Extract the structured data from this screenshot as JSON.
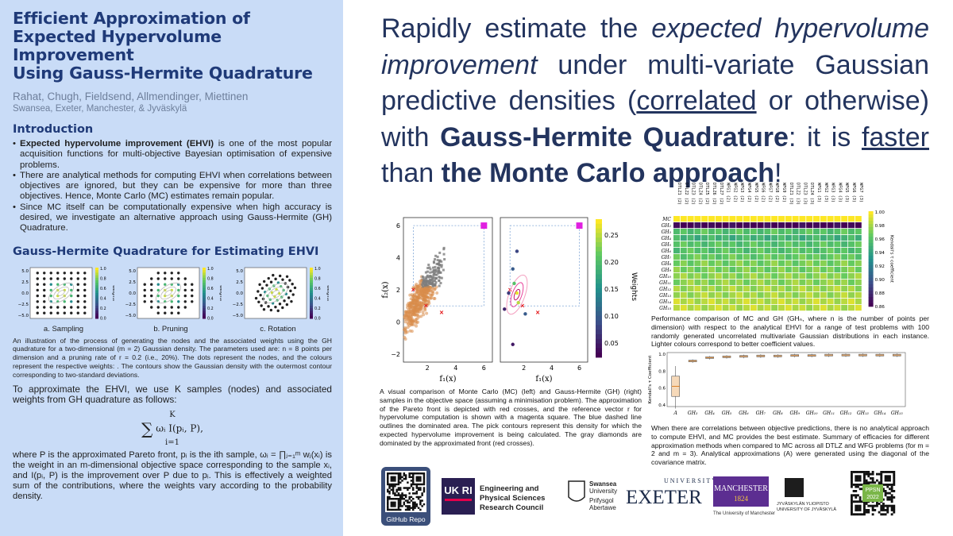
{
  "poster": {
    "title_lines": [
      "Efficient Approximation of",
      "Expected Hypervolume Improvement",
      "Using Gauss-Hermite Quadrature"
    ],
    "authors": "Rahat, Chugh, Fieldsend, Allmendinger, Miettinen",
    "affiliations": "Swansea, Exeter, Manchester, & Jyväskylä"
  },
  "intro": {
    "heading": "Introduction",
    "bullet1_bold": "Expected hypervolume improvement (EHVI)",
    "bullet1_rest": " is one of the most popular acquisition functions for multi-objective Bayesian optimisation of expensive problems.",
    "bullet2": "There are analytical methods for computing EHVI when correlations between objectives are ignored, but they can be expensive for more than three objectives. Hence, Monte Carlo (MC) estimates remain popular.",
    "bullet3": "Since MC itself can be computationally expensive when high accuracy is desired, we investigate an alternative approach using Gauss-Hermite (GH) Quadrature."
  },
  "gh": {
    "heading": "Gauss-Hermite Quadrature for Estimating EHVI",
    "thumb_caps": [
      "a. Sampling",
      "b. Pruning",
      "c. Rotation"
    ],
    "colorbar_label": "Weights",
    "thumb_yticks": [
      "5.0",
      "2.5",
      "0.0",
      "−2.5",
      "−5.0"
    ],
    "thumb_cticks": [
      "1.0",
      "0.8",
      "0.6",
      "0.4",
      "0.2",
      "0.0"
    ],
    "fig_caption": "An illustration of the process of generating the nodes and the associated weights using the GH quadrature for a two-dimensional (m = 2) Gaussian density. The parameters used are: n = 8 points per dimension and a pruning rate of r = 0.2 (i.e., 20%). The dots represent the nodes, and the colours represent the respective weights: . The contours show the Gaussian density with the outermost contour corresponding to two-standard deviations.",
    "para1": "To approximate the EHVI, we use K samples (nodes) and associated weights from GH quadrature as follows:",
    "formula_upper": "K",
    "formula_body": "ωᵢ I(pᵢ, P),",
    "formula_lower": "i=1",
    "para2": "where P is the approximated Pareto front, pᵢ is the ith sample, ωᵢ = ∏ⱼ₌₁ᵐ wⱼ(xᵢ) is the weight in an m-dimensional objective space corresponding to the sample xᵢ, and I(pᵢ, P) is the improvement over P due to pᵢ. This is effectively a weighted sum of the contributions, where the weights vary according to the probability density."
  },
  "headline": {
    "p1": "Rapidly estimate the ",
    "p1_italic": "expected hypervolume improvement",
    "p2": " under multi-variate Gaussian predictive densities (",
    "p2_underline": "correlated",
    "p3": " or otherwise) with ",
    "p3_bold": "Gauss-Hermite Quadrature",
    "p4": ":  it is ",
    "p4_underline": "faster",
    "p5": " than ",
    "p5_bold": "the Monte Carlo approach",
    "p6": "!"
  },
  "scatter": {
    "ylabel": "f₂(x)",
    "xlabel": "f₁(x)",
    "yticks": [
      "6",
      "4",
      "2",
      "0",
      "−2"
    ],
    "xticks": [
      "2",
      "4",
      "6"
    ],
    "colorbar_label": "Weights",
    "cticks": [
      "0.25",
      "0.20",
      "0.15",
      "0.10",
      "0.05"
    ],
    "caption": "A visual comparison of Monte Carlo (MC) (left) and Gauss-Hermite (GH) (right) samples in the objective space (assuming a minimisation problem). The approximation of the Pareto front is depicted with red crosses, and the reference vector r for hypervolume computation is shown with a magenta square. The blue dashed line outlines the dominated area. The pick contours represent this density for which the expected hypervolume improvement is being calculated. The gray diamonds are dominated by the approximated front (red crosses)."
  },
  "heatmap": {
    "rows": [
      "MC",
      "GH₂",
      "GH₃",
      "GH₄",
      "GH₅",
      "GH₆",
      "GH₇",
      "GH₈",
      "GH₉",
      "GH₁₀",
      "GH₁₁",
      "GH₁₂",
      "GH₁₃",
      "GH₁₄",
      "GH₁₅"
    ],
    "cols": [
      "DTLZ1 (2)",
      "DTLZ2 (2)",
      "DTLZ3 (2)",
      "DTLZ4 (2)",
      "DTLZ5 (2)",
      "DTLZ6 (2)",
      "DTLZ7 (2)",
      "WFG1 (2)",
      "WFG2 (2)",
      "WFG3 (2)",
      "WFG4 (2)",
      "WFG5 (2)",
      "WFG6 (2)",
      "WFG7 (2)",
      "WFG8 (2)",
      "WFG9 (2)",
      "DTLZ1 (3)",
      "DTLZ2 (3)",
      "DTLZ3 (3)",
      "DTLZ4 (3)",
      "WFG1 (3)",
      "WFG2 (3)",
      "WFG3 (3)",
      "WFG4 (3)",
      "WFG5 (3)",
      "WFG6 (3)",
      "WFG7 (3)"
    ],
    "colorbar_label": "Kendall's τ coefficient",
    "cticks": [
      "1.00",
      "0.98",
      "0.96",
      "0.94",
      "0.92",
      "0.90",
      "0.88",
      "0.86"
    ],
    "caption": "Performance comparison of MC and GH (GHₙ, where n is the number of points per dimension) with respect to the analytical EHVI for a range of test problems with 100 randomly generated uncorrelated multivariate Gaussian distributions in each instance. Lighter colours correspond to better coefficient values."
  },
  "boxplot": {
    "ylabel": "Kendall's τ Coefficient",
    "yticks": [
      "1.0",
      "0.8",
      "0.6",
      "0.4"
    ],
    "categories": [
      "A",
      "GH₃",
      "GH₄",
      "GH₅",
      "GH₆",
      "GH₇",
      "GH₈",
      "GH₉",
      "GH₁₀",
      "GH₁₁",
      "GH₁₂",
      "GH₁₃",
      "GH₁₄",
      "GH₁₅"
    ],
    "caption": "When there are correlations between objective predictions, there is no analytical approach to compute EHVI, and MC provides the best estimate. Summary of efficacies for different approximation methods when compared to MC across all DTLZ and WFG problems (for m = 2 and m = 3). Analytical approximations (A) were generated using the diagonal of the covariance matrix."
  },
  "logos": {
    "github": "GitHub Repo",
    "ukri": "UK RI",
    "epsrc": "Engineering and Physical Sciences Research Council",
    "swansea_lines": [
      "Swansea",
      "University",
      "Prifysgol",
      "Abertawe"
    ],
    "exeter_top": "UNIVERSITY OF",
    "exeter_main": "EXETER",
    "manchester_main": "MANCHESTER",
    "manchester_year": "1824",
    "manchester_sub": "The University of Manchester",
    "jyu_lines": [
      "JYVÄSKYLÄN YLIOPISTO",
      "UNIVERSITY OF JYVÄSKYLÄ"
    ],
    "ppsn_lines": [
      "PPSN",
      "2022"
    ]
  },
  "chart_data": [
    {
      "type": "heatmap",
      "title": "",
      "rows": [
        "MC",
        "GH₂",
        "GH₃",
        "GH₄",
        "GH₅",
        "GH₆",
        "GH₇",
        "GH₈",
        "GH₉",
        "GH₁₀",
        "GH₁₁",
        "GH₁₂",
        "GH₁₃",
        "GH₁₄",
        "GH₁₅"
      ],
      "row_values": [
        1.0,
        0.86,
        0.96,
        0.95,
        0.96,
        0.96,
        0.965,
        0.97,
        0.97,
        0.975,
        0.975,
        0.98,
        0.98,
        0.985,
        0.985
      ],
      "zlim": [
        0.86,
        1.0
      ]
    },
    {
      "type": "box",
      "categories": [
        "A",
        "GH₃",
        "GH₄",
        "GH₅",
        "GH₆",
        "GH₇",
        "GH₈",
        "GH₉",
        "GH₁₀",
        "GH₁₁",
        "GH₁₂",
        "GH₁₃",
        "GH₁₄",
        "GH₁₅"
      ],
      "medians": [
        0.62,
        0.92,
        0.96,
        0.97,
        0.975,
        0.98,
        0.98,
        0.985,
        0.985,
        0.99,
        0.99,
        0.99,
        0.99,
        0.99
      ],
      "ylim": [
        0.4,
        1.0
      ]
    }
  ]
}
